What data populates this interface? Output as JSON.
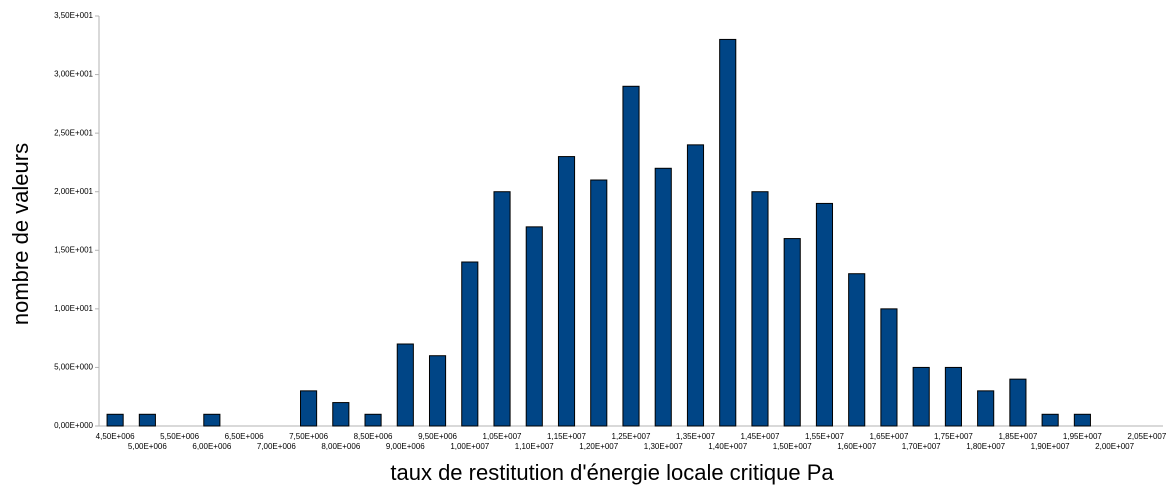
{
  "chart_data": {
    "type": "bar",
    "xlabel": "taux de restitution d'énergie locale critique Pa",
    "ylabel": "nombre de valeurs",
    "categories": [
      "4,50E+006",
      "5,00E+006",
      "5,50E+006",
      "6,00E+006",
      "6,50E+006",
      "7,00E+006",
      "7,50E+006",
      "8,00E+006",
      "8,50E+006",
      "9,00E+006",
      "9,50E+006",
      "1,00E+007",
      "1,05E+007",
      "1,10E+007",
      "1,15E+007",
      "1,20E+007",
      "1,25E+007",
      "1,30E+007",
      "1,35E+007",
      "1,40E+007",
      "1,45E+007",
      "1,50E+007",
      "1,55E+007",
      "1,60E+007",
      "1,65E+007",
      "1,70E+007",
      "1,75E+007",
      "1,80E+007",
      "1,85E+007",
      "1,90E+007",
      "1,95E+007",
      "2,00E+007",
      "2,05E+007"
    ],
    "values": [
      1,
      1,
      0,
      1,
      0,
      0,
      3,
      2,
      1,
      7,
      6,
      14,
      20,
      17,
      23,
      21,
      29,
      22,
      24,
      33,
      20,
      16,
      19,
      13,
      10,
      5,
      5,
      3,
      4,
      1,
      1,
      0,
      0
    ],
    "color": "#004586",
    "ylim": [
      0,
      35
    ],
    "yticks": [
      {
        "value": 0,
        "label": "0,00E+000"
      },
      {
        "value": 5,
        "label": "5,00E+000"
      },
      {
        "value": 10,
        "label": "1,00E+001"
      },
      {
        "value": 15,
        "label": "1,50E+001"
      },
      {
        "value": 20,
        "label": "2,00E+001"
      },
      {
        "value": 25,
        "label": "2,50E+001"
      },
      {
        "value": 30,
        "label": "3,00E+001"
      },
      {
        "value": 35,
        "label": "3,50E+001"
      }
    ],
    "grid": false
  }
}
